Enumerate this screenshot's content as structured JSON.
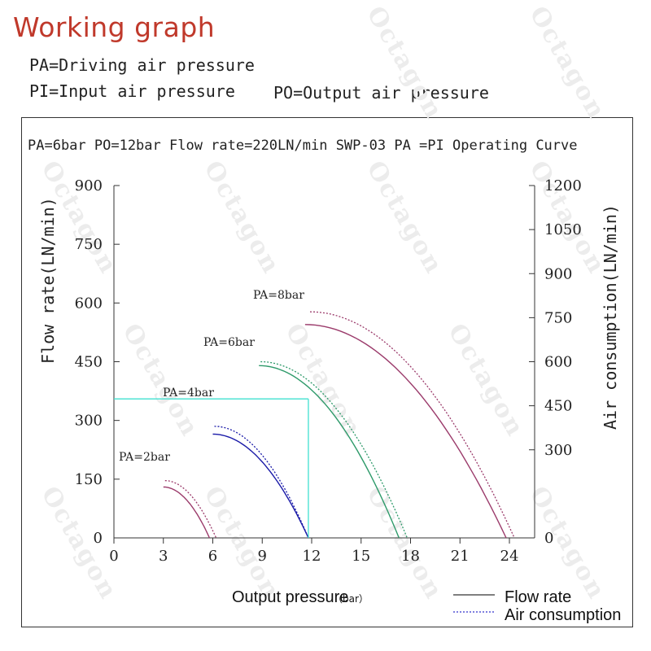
{
  "page": {
    "title": "Working graph",
    "definitions": [
      "PA=Driving air pressure",
      "PI=Input air pressure",
      "PO=Output air pressure"
    ],
    "watermark": "Octagon"
  },
  "chart_data": {
    "type": "line",
    "title": "PA=6bar PO=12bar  Flow rate=220LN/min  SWP-03 PA =PI Operating Curve",
    "xlabel": "Output pressure",
    "xlabel_unit": "（bar）",
    "ylabel_left": "Flow rate(LN/min)",
    "ylabel_right": "Air consumption(LN/min)",
    "xlim": [
      0,
      24
    ],
    "ylim_left": [
      0,
      900
    ],
    "ylim_right": [
      0,
      1200
    ],
    "xticks": [
      0,
      3,
      6,
      9,
      12,
      15,
      18,
      21,
      24
    ],
    "yticks_left": [
      0,
      150,
      300,
      450,
      600,
      750,
      900
    ],
    "yticks_right": [
      0,
      300,
      450,
      600,
      750,
      900,
      1050,
      1200
    ],
    "legend": [
      {
        "label": "Flow rate",
        "style": "solid"
      },
      {
        "label": "Air consumption",
        "style": "dotted"
      }
    ],
    "legend_position": "bottom-right",
    "series": [
      {
        "name": "PA=2bar",
        "color": "#9b3b6b",
        "flow": {
          "x_start": 3,
          "x_end": 5.8,
          "y_start": 130
        },
        "air": {
          "x_start": 3.1,
          "x_end": 6.2,
          "y_start": 195
        }
      },
      {
        "name": "PA=4bar",
        "color": "#1a1aa8",
        "flow": {
          "x_start": 6,
          "x_end": 11.8,
          "y_start": 265
        },
        "air": {
          "x_start": 6.1,
          "x_end": 11.8,
          "y_start": 380
        }
      },
      {
        "name": "PA=6bar",
        "color": "#2e9a6a",
        "flow": {
          "x_start": 8.8,
          "x_end": 17.3,
          "y_start": 440
        },
        "air": {
          "x_start": 8.9,
          "x_end": 17.8,
          "y_start": 600
        }
      },
      {
        "name": "PA=8bar",
        "color": "#9b3b6b",
        "flow": {
          "x_start": 11.6,
          "x_end": 23.8,
          "y_start": 545
        },
        "air": {
          "x_start": 11.9,
          "x_end": 24.3,
          "y_start": 770
        }
      }
    ],
    "reference_point": {
      "x": 11.8,
      "y": 355,
      "color": "#40e0d0"
    },
    "grid": false
  }
}
